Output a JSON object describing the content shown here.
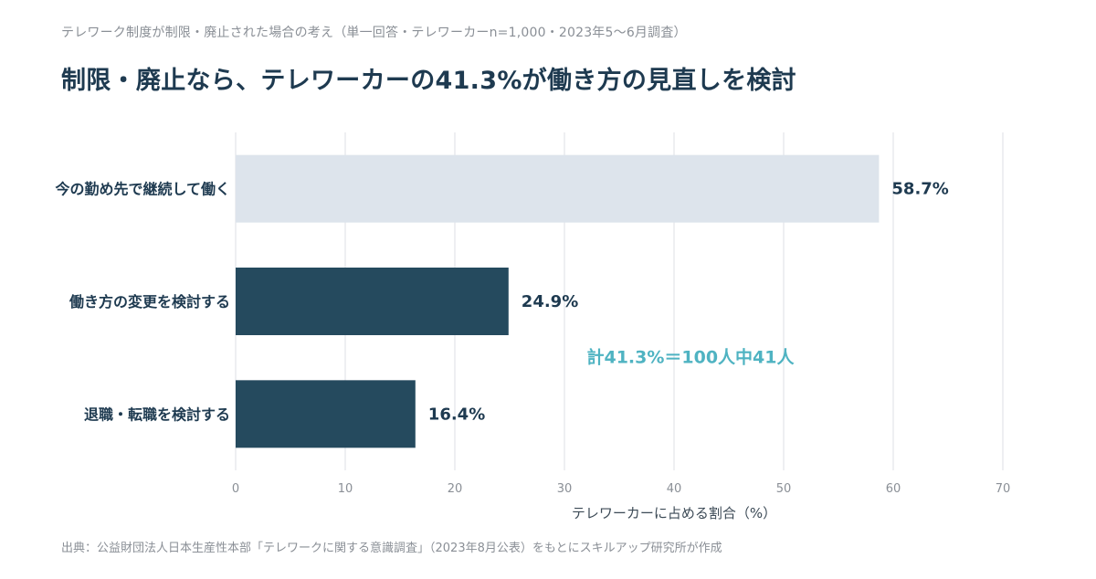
{
  "header": {
    "subtitle": "テレワーク制度が制限・廃止された場合の考え（単一回答・テレワーカーn=1,000・2023年5〜6月調査）",
    "title": "制限・廃止なら、テレワーカーの41.3%が働き方の見直しを検討"
  },
  "source": "出典：公益財団法人日本生産性本部「テレワークに関する意識調査」（2023年8月公表）をもとにスキルアップ研究所が作成",
  "chart_data": {
    "type": "bar",
    "orientation": "horizontal",
    "categories": [
      "今の勤め先で継続して働く",
      "働き方の変更を検討する",
      "退職・転職を検討する"
    ],
    "values": [
      58.7,
      24.9,
      16.4
    ],
    "value_labels": [
      "58.7%",
      "24.9%",
      "16.4%"
    ],
    "xlabel": "テレワーカーに占める割合（%）",
    "ylabel": "",
    "xlim": [
      0,
      70
    ],
    "xticks": [
      0,
      10,
      20,
      30,
      40,
      50,
      60,
      70
    ],
    "grid": true,
    "annotation": "計41.3%＝100人中41人",
    "colors": {
      "highlight": "#dde4ec",
      "main": "#254a5e",
      "annotation": "#4fb3c2",
      "grid": "#e8eaee"
    }
  }
}
